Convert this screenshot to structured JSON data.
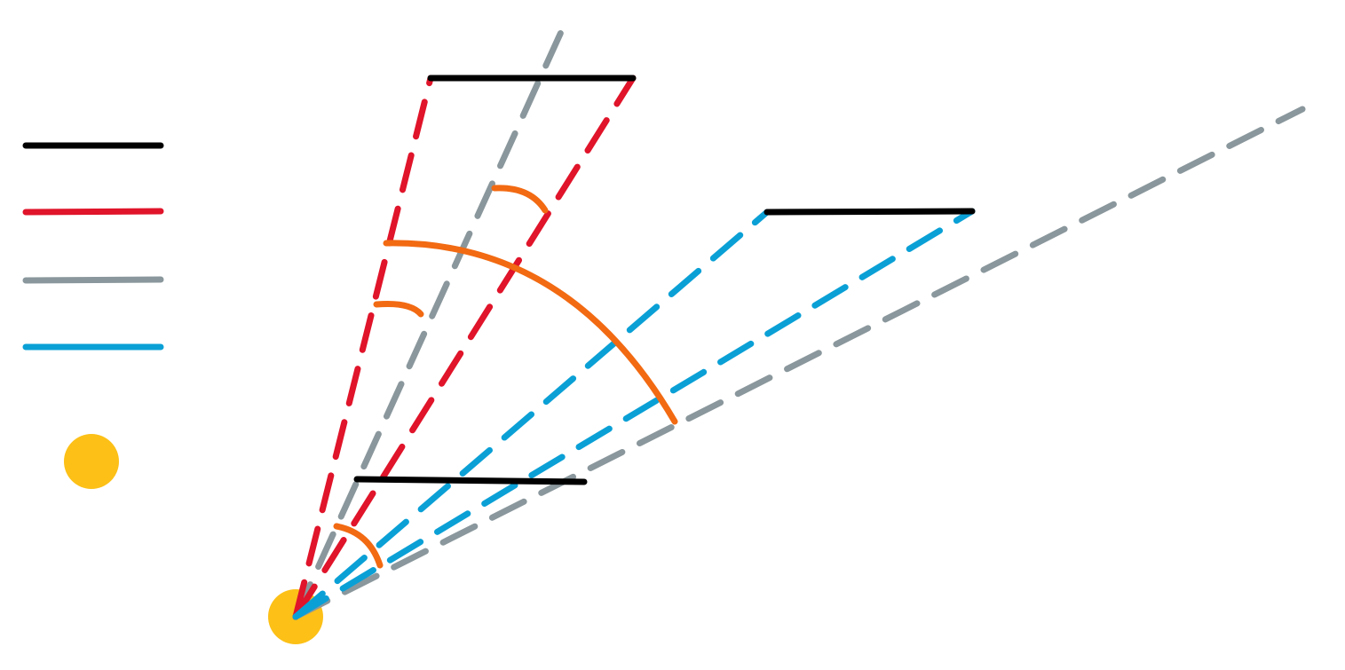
{
  "colors": {
    "object": "#000000",
    "ray_red": "#e0142a",
    "ray_gray": "#8a979c",
    "ray_blue": "#0aa0d6",
    "angle_arc": "#f26a12",
    "eye": "#fcc017"
  },
  "legend": {
    "items": [
      {
        "color_key": "object",
        "style": "solid"
      },
      {
        "color_key": "ray_red",
        "style": "solid"
      },
      {
        "color_key": "ray_gray",
        "style": "solid"
      },
      {
        "color_key": "ray_blue",
        "style": "solid"
      }
    ],
    "marker_color_key": "eye"
  }
}
